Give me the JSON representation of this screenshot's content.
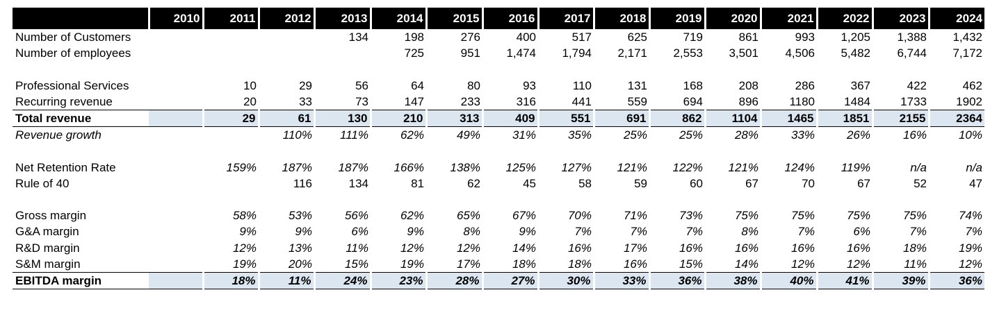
{
  "years": [
    "2010",
    "2011",
    "2012",
    "2013",
    "2014",
    "2015",
    "2016",
    "2017",
    "2018",
    "2019",
    "2020",
    "2021",
    "2022",
    "2023",
    "2024"
  ],
  "rows": [
    {
      "label": "Number of Customers",
      "style": "normal",
      "values": [
        "",
        "",
        "",
        "134",
        "198",
        "276",
        "400",
        "517",
        "625",
        "719",
        "861",
        "993",
        "1,205",
        "1,388",
        "1,432"
      ]
    },
    {
      "label": "Number of employees",
      "style": "normal",
      "values": [
        "",
        "",
        "",
        "",
        "725",
        "951",
        "1,474",
        "1,794",
        "2,171",
        "2,553",
        "3,501",
        "4,506",
        "5,482",
        "6,744",
        "7,172"
      ]
    },
    {
      "label": "",
      "style": "spacer",
      "values": []
    },
    {
      "label": "Professional Services",
      "style": "normal",
      "values": [
        "",
        "10",
        "29",
        "56",
        "64",
        "80",
        "93",
        "110",
        "131",
        "168",
        "208",
        "286",
        "367",
        "422",
        "462"
      ]
    },
    {
      "label": "Recurring revenue",
      "style": "normal",
      "values": [
        "",
        "20",
        "33",
        "73",
        "147",
        "233",
        "316",
        "441",
        "559",
        "694",
        "896",
        "1180",
        "1484",
        "1733",
        "1902"
      ]
    },
    {
      "label": "Total revenue",
      "style": "bold-highlight",
      "values": [
        "",
        "29",
        "61",
        "130",
        "210",
        "313",
        "409",
        "551",
        "691",
        "862",
        "1104",
        "1465",
        "1851",
        "2155",
        "2364"
      ]
    },
    {
      "label": "Revenue growth",
      "style": "italic",
      "values": [
        "",
        "",
        "110%",
        "111%",
        "62%",
        "49%",
        "31%",
        "35%",
        "25%",
        "25%",
        "28%",
        "33%",
        "26%",
        "16%",
        "10%"
      ]
    },
    {
      "label": "",
      "style": "spacer",
      "values": []
    },
    {
      "label": "Net Retention Rate",
      "style": "italic-values",
      "values": [
        "",
        "159%",
        "187%",
        "187%",
        "166%",
        "138%",
        "125%",
        "127%",
        "121%",
        "122%",
        "121%",
        "124%",
        "119%",
        "n/a",
        "n/a"
      ]
    },
    {
      "label": "Rule of 40",
      "style": "normal",
      "values": [
        "",
        "",
        "116",
        "134",
        "81",
        "62",
        "45",
        "58",
        "59",
        "60",
        "67",
        "70",
        "67",
        "52",
        "47"
      ]
    },
    {
      "label": "",
      "style": "spacer",
      "values": []
    },
    {
      "label": "Gross margin",
      "style": "italic-values",
      "values": [
        "",
        "58%",
        "53%",
        "56%",
        "62%",
        "65%",
        "67%",
        "70%",
        "71%",
        "73%",
        "75%",
        "75%",
        "75%",
        "75%",
        "74%"
      ]
    },
    {
      "label": "G&A margin",
      "style": "italic-values",
      "values": [
        "",
        "9%",
        "9%",
        "6%",
        "9%",
        "8%",
        "9%",
        "7%",
        "7%",
        "7%",
        "8%",
        "7%",
        "6%",
        "7%",
        "7%"
      ]
    },
    {
      "label": "R&D margin",
      "style": "italic-values",
      "values": [
        "",
        "12%",
        "13%",
        "11%",
        "12%",
        "12%",
        "14%",
        "16%",
        "17%",
        "16%",
        "16%",
        "16%",
        "16%",
        "18%",
        "19%"
      ]
    },
    {
      "label": "S&M margin",
      "style": "italic-values",
      "values": [
        "",
        "19%",
        "20%",
        "15%",
        "19%",
        "17%",
        "18%",
        "18%",
        "16%",
        "15%",
        "14%",
        "12%",
        "12%",
        "11%",
        "12%"
      ]
    },
    {
      "label": "EBITDA margin",
      "style": "bold-italic-highlight",
      "values": [
        "",
        "18%",
        "11%",
        "24%",
        "23%",
        "28%",
        "27%",
        "30%",
        "33%",
        "36%",
        "38%",
        "40%",
        "41%",
        "39%",
        "36%"
      ]
    }
  ]
}
